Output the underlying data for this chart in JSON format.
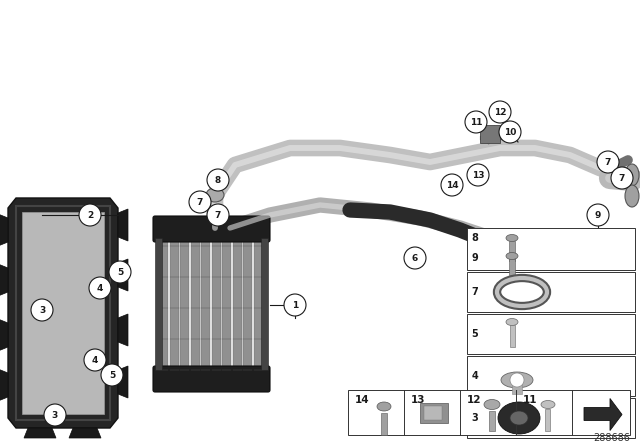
{
  "bg_color": "#ffffff",
  "part_number": "288686",
  "fig_width": 6.4,
  "fig_height": 4.48,
  "dpi": 100,
  "gray_dark": "#1a1a1a",
  "gray_med": "#888888",
  "gray_light": "#cccccc",
  "pipe_light": "#c8c8c8",
  "pipe_mid": "#a0a0a0",
  "pipe_dark": "#707070",
  "frame_dark": "#252525",
  "frame_tab": "#1a1a1a",
  "fin_color": "#808080",
  "cap_dark": "#1e1e1e",
  "rubber_dark": "#2a2a2a"
}
